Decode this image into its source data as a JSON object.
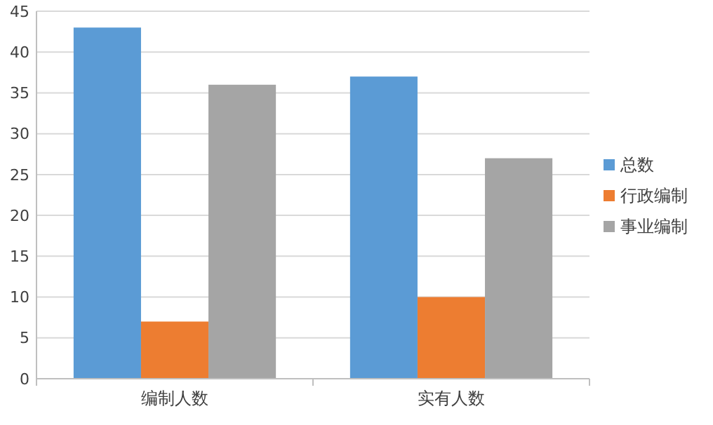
{
  "chart_data": {
    "type": "bar",
    "categories": [
      "编制人数",
      "实有人数"
    ],
    "series": [
      {
        "name": "总数",
        "color": "#5b9bd5",
        "values": [
          43,
          37
        ]
      },
      {
        "name": "行政编制",
        "color": "#ed7d31",
        "values": [
          7,
          10
        ]
      },
      {
        "name": "事业编制",
        "color": "#a5a5a5",
        "values": [
          36,
          27
        ]
      }
    ],
    "ylim": [
      0,
      45
    ],
    "yticks": [
      0,
      5,
      10,
      15,
      20,
      25,
      30,
      35,
      40,
      45
    ],
    "grid": "y",
    "legend": "right"
  }
}
